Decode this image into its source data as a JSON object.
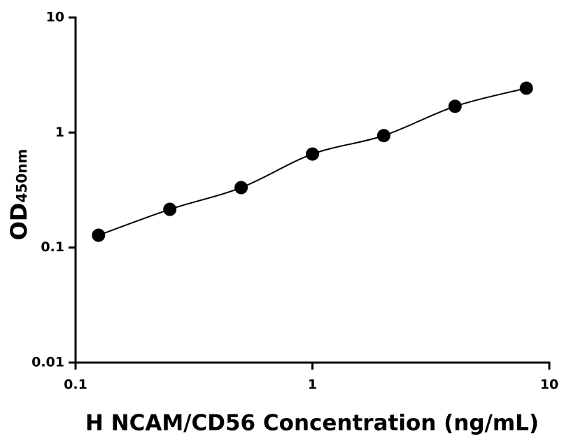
{
  "chart_data": {
    "type": "scatter",
    "xlabel": "H NCAM/CD56 Concentration (ng/mL)",
    "ylabel": "OD",
    "ylabel_sub": "450nm",
    "x": [
      0.125,
      0.25,
      0.5,
      1,
      2,
      4,
      8
    ],
    "series": [
      {
        "color": "#000000",
        "values": [
          0.128,
          0.215,
          0.332,
          0.65,
          0.94,
          1.69,
          2.43
        ]
      }
    ],
    "xscale": "log",
    "yscale": "log",
    "xlim": [
      0.1,
      10
    ],
    "ylim": [
      0.01,
      10
    ],
    "xticks": [
      0.1,
      1,
      10
    ],
    "yticks": [
      0.01,
      0.1,
      1,
      10
    ],
    "fit_curve": true
  }
}
